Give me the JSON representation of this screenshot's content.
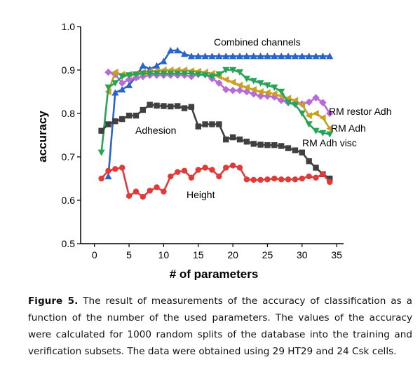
{
  "chart_data": {
    "type": "line",
    "xlabel": "# of parameters",
    "ylabel": "accuracy",
    "xlim": [
      -2,
      36
    ],
    "ylim": [
      0.5,
      1.0
    ],
    "xticks": [
      "0",
      "5",
      "10",
      "15",
      "20",
      "25",
      "30",
      "35"
    ],
    "xtick_values": [
      0,
      5,
      10,
      15,
      20,
      25,
      30,
      35
    ],
    "yticks": [
      "0.5",
      "0.6",
      "0.7",
      "0.8",
      "0.9",
      "1.0"
    ],
    "ytick_values": [
      0.5,
      0.6,
      0.7,
      0.8,
      0.9,
      1.0
    ],
    "grid": false,
    "legend": "none",
    "series": [
      {
        "name": "Combined channels",
        "color": "#2a63c9",
        "marker": "triangle-up",
        "x": [
          2,
          3,
          4,
          5,
          6,
          7,
          8,
          9,
          10,
          11,
          12,
          13,
          14,
          15,
          16,
          17,
          18,
          19,
          20,
          21,
          22,
          23,
          24,
          25,
          26,
          27,
          28,
          29,
          30,
          31,
          32,
          33,
          34
        ],
        "y": [
          0.655,
          0.848,
          0.855,
          0.865,
          0.885,
          0.91,
          0.902,
          0.91,
          0.92,
          0.945,
          0.945,
          0.937,
          0.932,
          0.932,
          0.932,
          0.932,
          0.932,
          0.932,
          0.932,
          0.932,
          0.932,
          0.932,
          0.932,
          0.932,
          0.932,
          0.932,
          0.932,
          0.932,
          0.932,
          0.932,
          0.932,
          0.932,
          0.932
        ]
      },
      {
        "name": "RM restor Adh",
        "color": "#b86bd8",
        "marker": "diamond",
        "x": [
          2,
          3,
          4,
          5,
          6,
          7,
          8,
          9,
          10,
          11,
          12,
          13,
          14,
          15,
          16,
          17,
          18,
          19,
          20,
          21,
          22,
          23,
          24,
          25,
          26,
          27,
          28,
          29,
          30,
          31,
          32,
          33,
          34
        ],
        "y": [
          0.895,
          0.89,
          0.87,
          0.878,
          0.882,
          0.885,
          0.888,
          0.888,
          0.888,
          0.888,
          0.888,
          0.888,
          0.885,
          0.89,
          0.89,
          0.88,
          0.87,
          0.855,
          0.853,
          0.853,
          0.85,
          0.845,
          0.84,
          0.84,
          0.838,
          0.83,
          0.825,
          0.822,
          0.822,
          0.826,
          0.836,
          0.825,
          0.8
        ]
      },
      {
        "name": "RM Adh",
        "color": "#c9a020",
        "marker": "triangle-left",
        "x": [
          2,
          3,
          4,
          5,
          6,
          7,
          8,
          9,
          10,
          11,
          12,
          13,
          14,
          15,
          16,
          17,
          18,
          19,
          20,
          21,
          22,
          23,
          24,
          25,
          26,
          27,
          28,
          29,
          30,
          31,
          32,
          33,
          34
        ],
        "y": [
          0.85,
          0.895,
          0.89,
          0.89,
          0.892,
          0.895,
          0.897,
          0.898,
          0.9,
          0.9,
          0.9,
          0.9,
          0.898,
          0.897,
          0.895,
          0.892,
          0.885,
          0.878,
          0.872,
          0.865,
          0.86,
          0.855,
          0.85,
          0.848,
          0.845,
          0.84,
          0.835,
          0.83,
          0.82,
          0.795,
          0.8,
          0.79,
          0.765
        ]
      },
      {
        "name": "RM Adh visc",
        "color": "#2aa35a",
        "marker": "triangle-down",
        "x": [
          1,
          2,
          3,
          4,
          5,
          6,
          7,
          8,
          9,
          10,
          11,
          12,
          13,
          14,
          15,
          16,
          17,
          18,
          19,
          20,
          21,
          22,
          23,
          24,
          25,
          26,
          27,
          28,
          29,
          30,
          31,
          32,
          33,
          34
        ],
        "y": [
          0.71,
          0.86,
          0.87,
          0.885,
          0.888,
          0.89,
          0.892,
          0.892,
          0.892,
          0.892,
          0.892,
          0.892,
          0.892,
          0.892,
          0.89,
          0.888,
          0.885,
          0.89,
          0.9,
          0.9,
          0.895,
          0.88,
          0.875,
          0.87,
          0.865,
          0.86,
          0.85,
          0.825,
          0.82,
          0.8,
          0.775,
          0.76,
          0.755,
          0.752
        ]
      },
      {
        "name": "Adhesion",
        "color": "#404040",
        "marker": "square",
        "x": [
          1,
          2,
          3,
          4,
          5,
          6,
          7,
          8,
          9,
          10,
          11,
          12,
          13,
          14,
          15,
          16,
          17,
          18,
          19,
          20,
          21,
          22,
          23,
          24,
          25,
          26,
          27,
          28,
          29,
          30,
          31,
          32,
          33,
          34
        ],
        "y": [
          0.76,
          0.775,
          0.782,
          0.787,
          0.795,
          0.795,
          0.808,
          0.82,
          0.818,
          0.817,
          0.816,
          0.817,
          0.812,
          0.815,
          0.77,
          0.775,
          0.775,
          0.775,
          0.74,
          0.745,
          0.74,
          0.735,
          0.73,
          0.728,
          0.727,
          0.727,
          0.725,
          0.72,
          0.715,
          0.71,
          0.69,
          0.675,
          0.66,
          0.65
        ]
      },
      {
        "name": "Height",
        "color": "#e03a3a",
        "marker": "circle",
        "x": [
          1,
          2,
          3,
          4,
          5,
          6,
          7,
          8,
          9,
          10,
          11,
          12,
          13,
          14,
          15,
          16,
          17,
          18,
          19,
          20,
          21,
          22,
          23,
          24,
          25,
          26,
          27,
          28,
          29,
          30,
          31,
          32,
          33,
          34
        ],
        "y": [
          0.65,
          0.668,
          0.672,
          0.675,
          0.61,
          0.62,
          0.608,
          0.622,
          0.63,
          0.62,
          0.655,
          0.665,
          0.668,
          0.652,
          0.67,
          0.675,
          0.67,
          0.655,
          0.675,
          0.68,
          0.675,
          0.648,
          0.647,
          0.647,
          0.648,
          0.65,
          0.648,
          0.648,
          0.648,
          0.65,
          0.655,
          0.652,
          0.66,
          0.642
        ]
      }
    ],
    "annotations": [
      {
        "text": "Combined channels",
        "series": "Combined channels"
      },
      {
        "text": "RM restor Adh",
        "series": "RM restor Adh"
      },
      {
        "text": "RM Adh",
        "series": "RM Adh"
      },
      {
        "text": "RM Adh visc",
        "series": "RM Adh visc"
      },
      {
        "text": "Adhesion",
        "series": "Adhesion"
      },
      {
        "text": "Height",
        "series": "Height"
      }
    ]
  },
  "caption": {
    "label": "Figure 5.",
    "text": "The result of measurements of the accuracy of classification as a function of the number of the used parameters. The values of the accuracy were calculated for 1000 random splits of the database into the training and verification subsets. The data were obtained using 29 HT29 and 24 Csk cells."
  }
}
